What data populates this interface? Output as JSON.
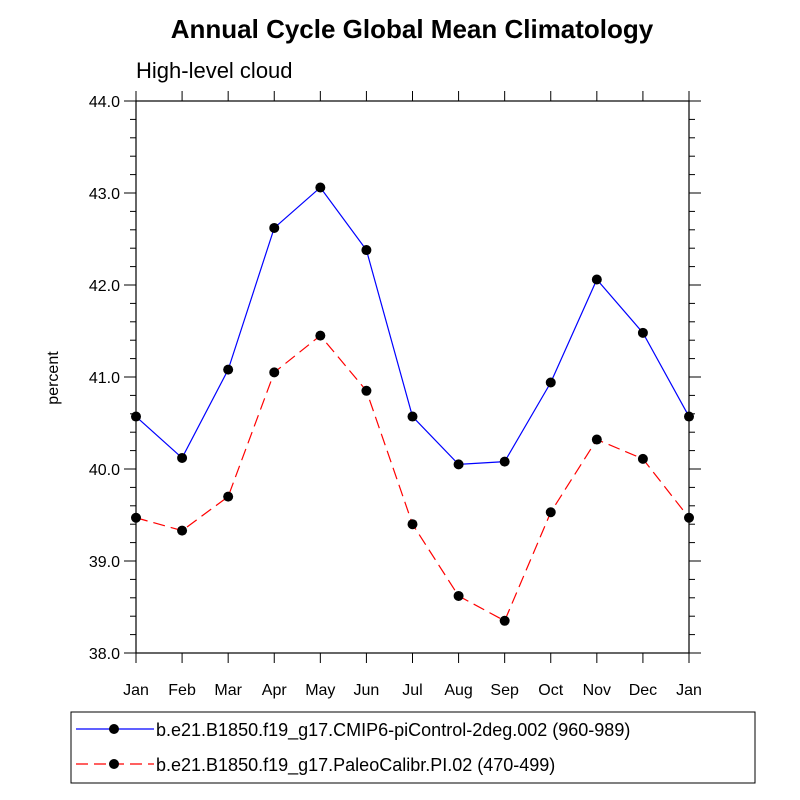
{
  "chart_data": {
    "type": "line",
    "title": "Annual Cycle Global Mean Climatology",
    "subtitle": "High-level cloud",
    "xlabel": "",
    "ylabel": "percent",
    "categories": [
      "Jan",
      "Feb",
      "Mar",
      "Apr",
      "May",
      "Jun",
      "Jul",
      "Aug",
      "Sep",
      "Oct",
      "Nov",
      "Dec",
      "Jan"
    ],
    "ylim": [
      38.0,
      44.0
    ],
    "yticks": [
      38.0,
      39.0,
      40.0,
      41.0,
      42.0,
      43.0,
      44.0
    ],
    "ytick_labels": [
      "38.0",
      "39.0",
      "40.0",
      "41.0",
      "42.0",
      "43.0",
      "44.0"
    ],
    "y_minor_step": 0.2,
    "grid": false,
    "legend_position": "bottom",
    "series": [
      {
        "name": "b.e21.B1850.f19_g17.CMIP6-piControl-2deg.002 (960-989)",
        "color": "#0000ff",
        "dash": "solid",
        "values": [
          40.57,
          40.12,
          41.08,
          42.62,
          43.06,
          42.38,
          40.57,
          40.05,
          40.08,
          40.94,
          42.06,
          41.48,
          40.57
        ]
      },
      {
        "name": "b.e21.B1850.f19_g17.PaleoCalibr.PI.02 (470-499)",
        "color": "#ff0000",
        "dash": "dashed",
        "values": [
          39.47,
          39.33,
          39.7,
          41.05,
          41.45,
          40.85,
          39.4,
          38.62,
          38.35,
          39.53,
          40.32,
          40.11,
          39.47
        ]
      }
    ]
  }
}
